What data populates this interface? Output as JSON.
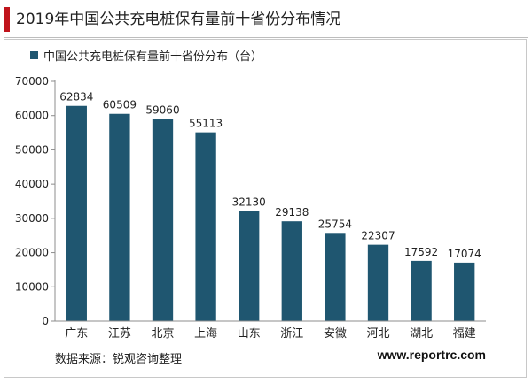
{
  "chart_data": {
    "type": "bar",
    "title": "2019年中国公共充电桩保有量前十省份分布情况",
    "legend": "中国公共充电桩保有量前十省份分布（台）",
    "legend_position": "top-left",
    "categories": [
      "广东",
      "江苏",
      "北京",
      "上海",
      "山东",
      "浙江",
      "安徽",
      "河北",
      "湖北",
      "福建"
    ],
    "series": [
      {
        "name": "中国公共充电桩保有量前十省份分布（台）",
        "values": [
          62834,
          60509,
          59060,
          55113,
          32130,
          29138,
          25754,
          22307,
          17592,
          17074
        ]
      }
    ],
    "ylim": [
      0,
      70000
    ],
    "yticks": [
      "0",
      "10000",
      "20000",
      "30000",
      "40000",
      "50000",
      "60000",
      "70000"
    ],
    "grid": false,
    "bar_color": "#1f5670",
    "accent_color": "#c0141c"
  },
  "footer": {
    "source": "数据来源：锐观咨询整理",
    "website": "www.reportrc.com"
  }
}
